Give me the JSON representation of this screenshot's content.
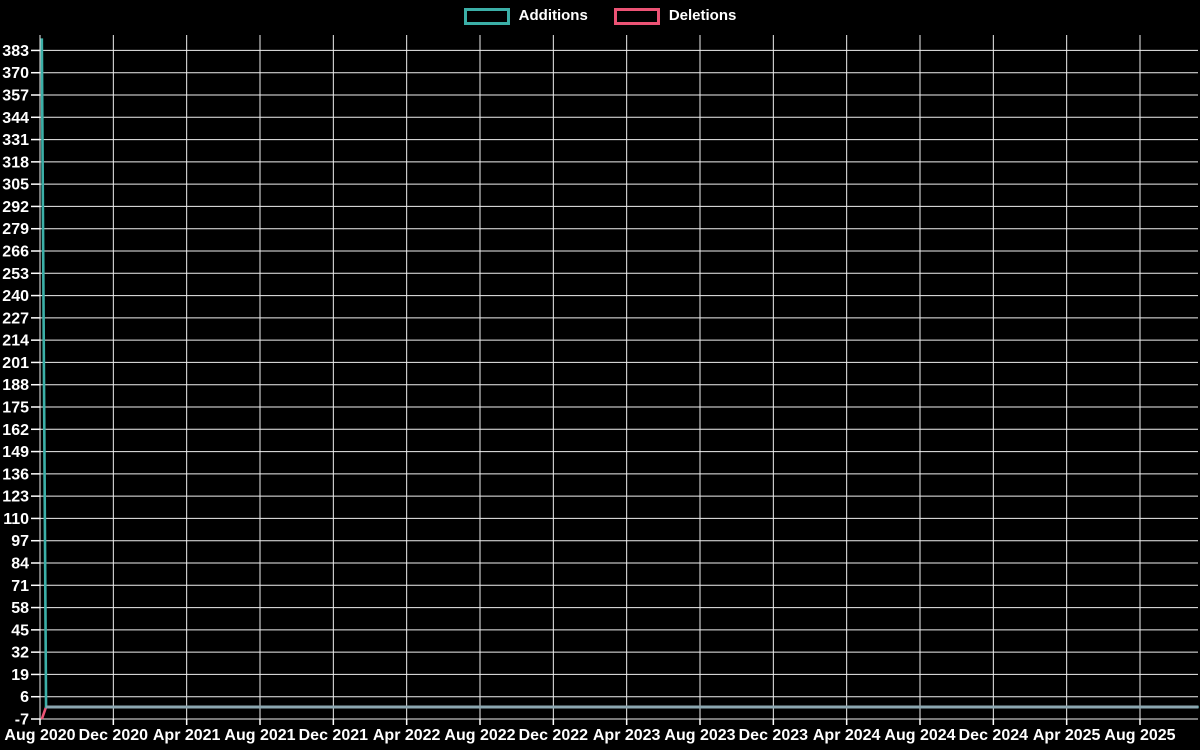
{
  "page": {
    "background_color": "#000000",
    "text_color": "#ffffff"
  },
  "legend": {
    "position": "top-center",
    "items": [
      {
        "label": "Additions",
        "swatch": "outlined-box",
        "color": "#3bafa7"
      },
      {
        "label": "Deletions",
        "swatch": "outlined-box",
        "color": "#ec5375"
      }
    ]
  },
  "chart_data": {
    "type": "line",
    "title": "",
    "background_color": "#000000",
    "grid": true,
    "grid_color": "#f0f0f0",
    "text_color": "#ffffff",
    "legend_position": "top-center",
    "x_axis": {
      "unit": "months since Aug 2020",
      "tick_interval_months": 4,
      "xlim_months": [
        0,
        63.2
      ],
      "tick_labels": [
        "Aug 2020",
        "Dec 2020",
        "Apr 2021",
        "Aug 2021",
        "Dec 2021",
        "Apr 2022",
        "Aug 2022",
        "Dec 2022",
        "Apr 2023",
        "Aug 2023",
        "Dec 2023",
        "Apr 2024",
        "Aug 2024",
        "Dec 2024",
        "Apr 2025",
        "Aug 2025"
      ]
    },
    "y_axis": {
      "ylim": [
        -7,
        392
      ],
      "tick_step": 13,
      "ticks": [
        -7,
        6,
        19,
        32,
        45,
        58,
        71,
        84,
        97,
        110,
        123,
        136,
        149,
        162,
        175,
        188,
        201,
        214,
        227,
        240,
        253,
        266,
        279,
        292,
        305,
        318,
        331,
        344,
        357,
        370,
        383
      ]
    },
    "series": [
      {
        "name": "Additions",
        "color": "#3bafa7",
        "x_months": [
          0.1,
          0.33,
          63.2
        ],
        "y": [
          390,
          0,
          0
        ]
      },
      {
        "name": "Deletions",
        "color": "#ec5375",
        "x_months": [
          0.1,
          0.33,
          63.2
        ],
        "y": [
          -7,
          0,
          0
        ]
      }
    ],
    "overlap_zero_line_color": "#8ba6b0"
  }
}
